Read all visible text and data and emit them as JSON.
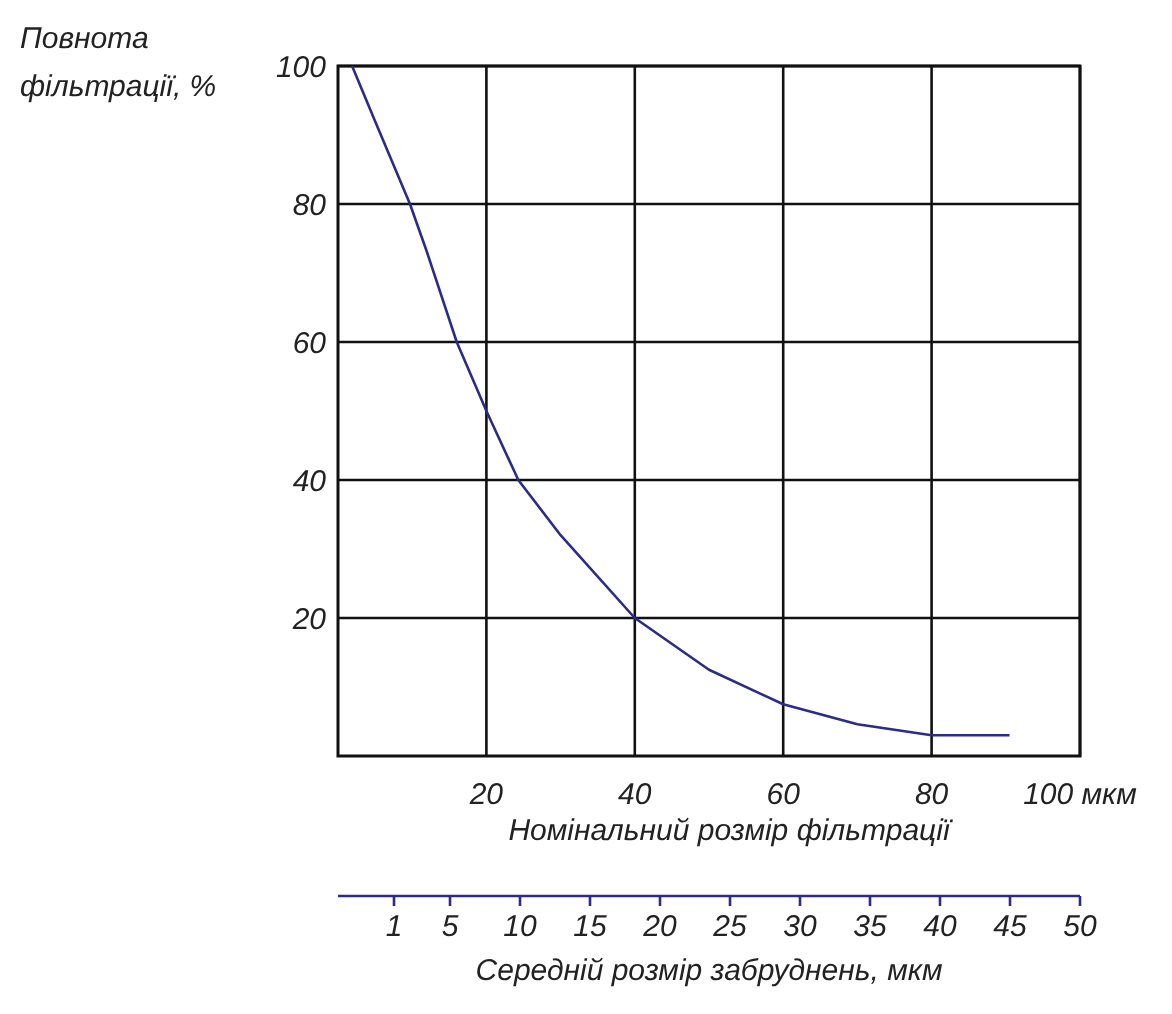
{
  "chart_data": {
    "type": "line",
    "ylabel": "Повнота фільтрації, %",
    "xlabel": "Номінальний розмір фільтрації",
    "x2label": "Середній розмір забруднень, мкм",
    "xlim": [
      0,
      100
    ],
    "xticks": [
      20,
      40,
      60,
      80,
      {
        "value": 100,
        "label": "100 мкм"
      }
    ],
    "ylim": [
      0,
      100
    ],
    "yticks": [
      20,
      40,
      60,
      80,
      100
    ],
    "x2lim": [
      -3,
      50
    ],
    "x2ticks": [
      1,
      5,
      10,
      15,
      20,
      25,
      30,
      35,
      40,
      45,
      50
    ],
    "grid": true,
    "marker": "none",
    "series": [
      {
        "color": "#2b2b8a",
        "x": [
          1.9,
          5,
          9.7,
          12,
          16,
          20,
          24.3,
          30,
          40,
          50,
          60,
          70,
          80,
          90.5
        ],
        "values": [
          100,
          92,
          80,
          73,
          60,
          50,
          40,
          32,
          20,
          12.5,
          7.5,
          4.6,
          3,
          3
        ]
      }
    ]
  }
}
